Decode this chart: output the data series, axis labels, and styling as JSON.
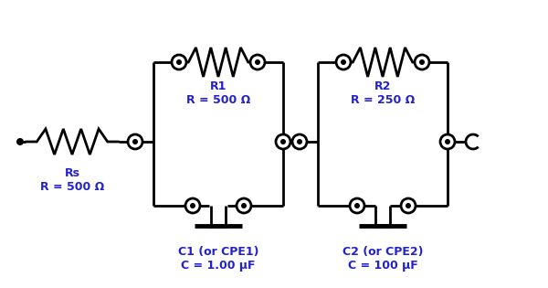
{
  "bg_color": "#ffffff",
  "line_color": "#000000",
  "text_color": "#2222cc",
  "line_width": 2.0,
  "Rs_label": "Rs\nR = 500 Ω",
  "R1_label": "R1\nR = 500 Ω",
  "C1_label": "C1 (or CPE1)\nC = 1.00 μF",
  "R2_label": "R2\nR = 250 Ω",
  "C2_label": "C2 (or CPE2)\nC = 100 μF",
  "fig_w": 6.0,
  "fig_h": 3.15,
  "dpi": 100
}
